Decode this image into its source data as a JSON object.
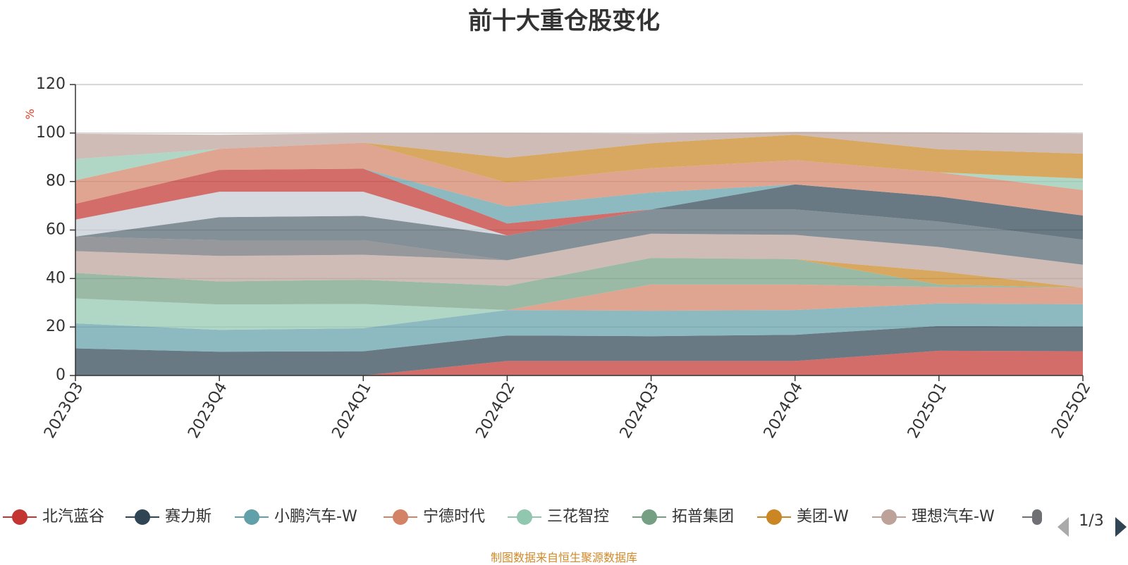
{
  "title": "前十大重仓股变化",
  "source": "制图数据来自恒生聚源数据库",
  "pager": "1/3",
  "chart_data": {
    "type": "area",
    "stacked": true,
    "title": "前十大重仓股变化",
    "ylabel": "%",
    "xlabel": "",
    "ylim": [
      0,
      120
    ],
    "yticks": [
      0,
      20,
      40,
      60,
      80,
      100,
      120
    ],
    "categories": [
      "2023Q3",
      "2023Q4",
      "2024Q1",
      "2024Q2",
      "2024Q3",
      "2024Q4",
      "2025Q1",
      "2025Q2"
    ],
    "series": [
      {
        "name": "北汽蓝谷",
        "color": "#c23531",
        "values": [
          0,
          0,
          0,
          6.0,
          6.0,
          6.0,
          10.2,
          10.0
        ]
      },
      {
        "name": "赛力斯",
        "color": "#2f4554",
        "values": [
          11.2,
          9.8,
          10.0,
          10.5,
          10.2,
          10.8,
          10.2,
          10.2
        ]
      },
      {
        "name": "小鹏汽车-W",
        "color": "#61a0a8",
        "values": [
          10.3,
          9.0,
          9.5,
          10.5,
          10.5,
          10.2,
          9.3,
          9.2
        ]
      },
      {
        "name": "宁德时代",
        "color": "#d48265",
        "values": [
          0,
          0,
          0,
          0,
          10.8,
          10.5,
          6.8,
          6.8
        ]
      },
      {
        "name": "三花智控",
        "color": "#91c7ae",
        "values": [
          10.3,
          10.5,
          10.0,
          0,
          0,
          0,
          0,
          0
        ]
      },
      {
        "name": "拓普集团",
        "color": "#749f83",
        "values": [
          10.5,
          9.5,
          10.0,
          10.0,
          11.0,
          10.5,
          1.0,
          0
        ]
      },
      {
        "name": "美团-W",
        "color": "#ca8622",
        "values": [
          0,
          0,
          0,
          0,
          0,
          0,
          5.5,
          0
        ]
      },
      {
        "name": "理想汽车-W",
        "color": "#bda29a",
        "values": [
          9.0,
          10.5,
          10.3,
          10.5,
          10.0,
          10.0,
          10.0,
          9.5
        ]
      },
      {
        "name": "",
        "color": "#6e7074",
        "values": [
          6.0,
          6.5,
          6.0,
          0,
          0,
          0,
          0,
          0
        ]
      },
      {
        "name": "",
        "color": "#546570",
        "values": [
          0,
          9.5,
          10.0,
          10.2,
          10.0,
          10.5,
          10.5,
          10.3
        ]
      },
      {
        "name": "",
        "color": "#c4ccd3",
        "values": [
          7.0,
          10.5,
          10.0,
          0,
          0,
          0,
          0,
          0
        ]
      },
      {
        "name": "",
        "color": "#2f4554",
        "values": [
          0,
          0,
          0,
          0,
          0,
          10.3,
          10.3,
          10.0
        ]
      },
      {
        "name": "",
        "color": "#c23531",
        "values": [
          6.5,
          9.0,
          9.5,
          5.0,
          0,
          0,
          0,
          0
        ]
      },
      {
        "name": "",
        "color": "#61a0a8",
        "values": [
          0,
          0,
          0,
          7.0,
          7.0,
          0,
          0,
          0
        ]
      },
      {
        "name": "",
        "color": "#d48265",
        "values": [
          9.7,
          8.7,
          10.7,
          9.8,
          10.0,
          10.0,
          10.0,
          10.5
        ]
      },
      {
        "name": "",
        "color": "#91c7ae",
        "values": [
          8.8,
          0,
          0,
          0,
          0,
          0,
          0,
          4.7
        ]
      },
      {
        "name": "",
        "color": "#ca8622",
        "values": [
          0,
          0,
          0,
          10.3,
          10.3,
          10.5,
          9.5,
          10.3
        ]
      },
      {
        "name": "",
        "color": "#bda29a",
        "values": [
          10.4,
          5.8,
          3.9,
          10.2,
          3.9,
          1.2,
          7.0,
          8.2
        ]
      }
    ],
    "legend": {
      "position": "bottom",
      "visible_entries": [
        "北汽蓝谷",
        "赛力斯",
        "小鹏汽车-W",
        "宁德时代",
        "三花智控",
        "拓普集团",
        "美团-W",
        "理想汽车-W"
      ],
      "page": "1/3"
    },
    "grid": true
  }
}
